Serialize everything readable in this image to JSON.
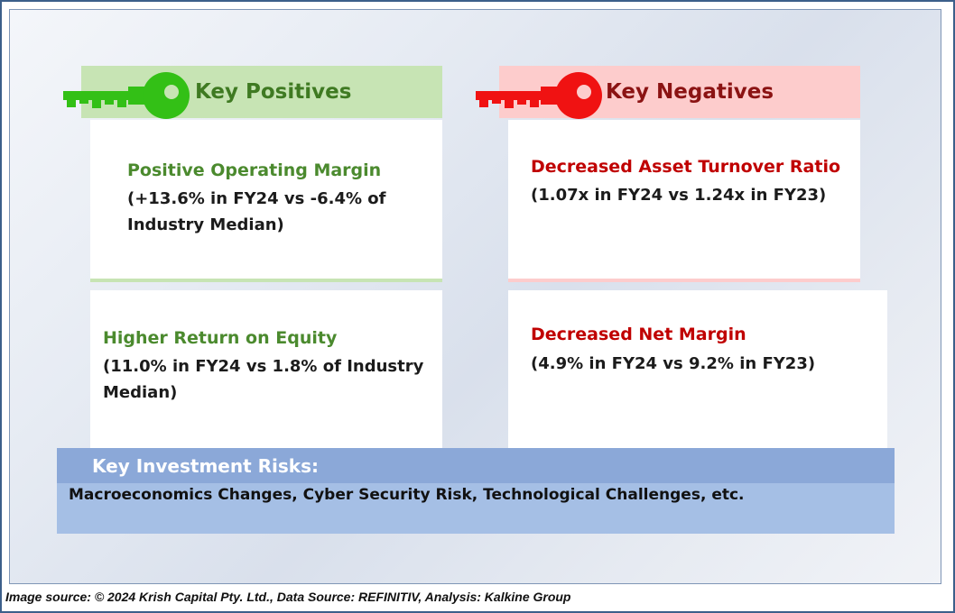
{
  "positives": {
    "header": "Key Positives",
    "items": [
      {
        "title": "Positive Operating Margin",
        "detail_line1": "(+13.6% in FY24 vs -6.4% of",
        "detail_line2": "Industry Median)"
      },
      {
        "title": "Higher Return on Equity",
        "detail_line1": "(11.0% in FY24 vs 1.8% of Industry",
        "detail_line2": "Median)"
      }
    ]
  },
  "negatives": {
    "header": "Key Negatives",
    "items": [
      {
        "title": "Decreased Asset Turnover Ratio",
        "detail_line1": "(1.07x in FY24 vs 1.24x in FY23)"
      },
      {
        "title": "Decreased Net Margin",
        "detail_line1": "(4.9% in FY24 vs 9.2% in FY23)"
      }
    ]
  },
  "risks": {
    "title": "Key Investment Risks:",
    "text": "Macroeconomics Changes, Cyber Security Risk, Technological Challenges, etc."
  },
  "footer": {
    "text": "Image source: © 2024 Krish Capital Pty. Ltd., Data Source: REFINITIV, Analysis: Kalkine Group"
  },
  "colors": {
    "positive_key": "#33c016",
    "negative_key": "#f01212",
    "positive_header_bg": "#c7e4b4",
    "negative_header_bg": "#fdcccc",
    "risk_band": "#a5bfe5"
  },
  "icons": {
    "positive": "green-key-icon",
    "negative": "red-key-icon"
  }
}
